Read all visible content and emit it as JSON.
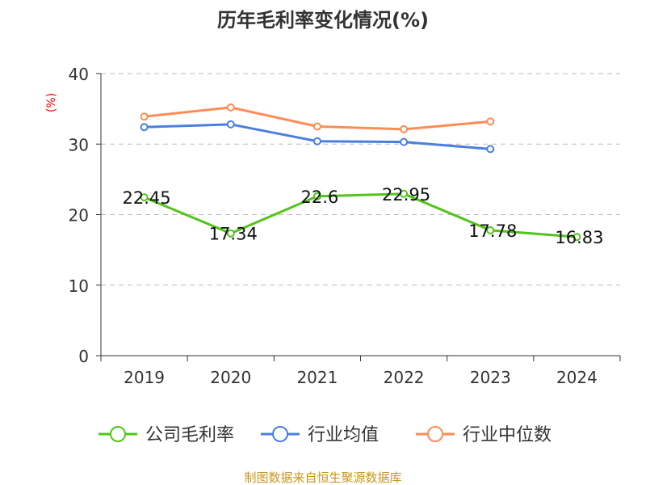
{
  "chart_data": {
    "type": "line",
    "title": "历年毛利率变化情况(%)",
    "ylabel": "(%)",
    "categories": [
      "2019",
      "2020",
      "2021",
      "2022",
      "2023",
      "2024"
    ],
    "ylim": [
      0,
      40
    ],
    "yticks": [
      0,
      10,
      20,
      30,
      40
    ],
    "grid": true,
    "legend_position": "bottom",
    "series": [
      {
        "name": "公司毛利率",
        "color": "#52c41a",
        "values": [
          22.45,
          17.34,
          22.6,
          22.95,
          17.78,
          16.83
        ],
        "labels": [
          "22.45",
          "17.34",
          "22.6",
          "22.95",
          "17.78",
          "16.83"
        ]
      },
      {
        "name": "行业均值",
        "color": "#4a7fe0",
        "values": [
          32.4,
          32.8,
          30.4,
          30.3,
          29.3,
          null
        ]
      },
      {
        "name": "行业中位数",
        "color": "#ff8c55",
        "values": [
          33.9,
          35.2,
          32.5,
          32.1,
          33.2,
          null
        ]
      }
    ]
  },
  "footer": {
    "source": "制图数据来自恒生聚源数据库",
    "color": "#c8961e"
  }
}
